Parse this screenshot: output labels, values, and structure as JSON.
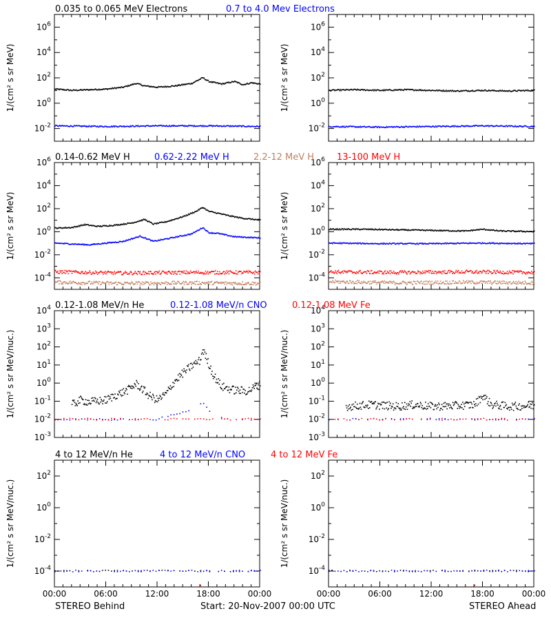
{
  "chart_data": {
    "type": "scatter",
    "x_tick_labels": [
      "00:00",
      "06:00",
      "12:00",
      "18:00",
      "00:00"
    ],
    "x_range_hours": [
      0,
      24
    ],
    "footer": {
      "left": "STEREO Behind",
      "center": "Start: 20-Nov-2007 00:00 UTC",
      "right": "STEREO Ahead"
    },
    "columns": [
      "STEREO Behind",
      "STEREO Ahead"
    ],
    "rows": [
      {
        "ylabel": "1/(cm² s sr MeV)",
        "ylim_log10": [
          -3,
          7
        ],
        "y_ticks": [
          -2,
          0,
          2,
          4,
          6
        ],
        "series": [
          {
            "name": "0.035 to 0.065 MeV Electrons",
            "color": "#000000",
            "behind": [
              [
                0,
                1.1
              ],
              [
                2,
                1.0
              ],
              [
                4,
                1.05
              ],
              [
                6,
                1.1
              ],
              [
                8,
                1.25
              ],
              [
                9.5,
                1.55
              ],
              [
                10.5,
                1.35
              ],
              [
                12,
                1.25
              ],
              [
                14,
                1.35
              ],
              [
                16,
                1.55
              ],
              [
                17.3,
                2.0
              ],
              [
                18,
                1.7
              ],
              [
                19.5,
                1.5
              ],
              [
                21,
                1.7
              ],
              [
                22,
                1.45
              ],
              [
                23,
                1.6
              ],
              [
                24,
                1.5
              ]
            ],
            "ahead": [
              [
                0,
                1.0
              ],
              [
                3,
                1.05
              ],
              [
                6,
                1.0
              ],
              [
                9,
                1.05
              ],
              [
                12,
                1.0
              ],
              [
                15,
                0.95
              ],
              [
                18,
                1.0
              ],
              [
                21,
                0.95
              ],
              [
                24,
                1.0
              ]
            ]
          },
          {
            "name": "0.7 to 4.0 Mev Electrons",
            "color": "#0000ff",
            "behind": [
              [
                0,
                -1.8
              ],
              [
                6,
                -1.85
              ],
              [
                12,
                -1.8
              ],
              [
                18,
                -1.8
              ],
              [
                24,
                -1.85
              ]
            ],
            "ahead": [
              [
                0,
                -1.85
              ],
              [
                6,
                -1.9
              ],
              [
                12,
                -1.85
              ],
              [
                18,
                -1.8
              ],
              [
                24,
                -1.85
              ]
            ]
          }
        ]
      },
      {
        "ylabel": "1/(cm² s sr MeV)",
        "ylim_log10": [
          -5,
          6
        ],
        "y_ticks": [
          -4,
          -2,
          0,
          2,
          4,
          6
        ],
        "series": [
          {
            "name": "0.14-0.62 MeV H",
            "color": "#000000",
            "behind": [
              [
                0,
                0.3
              ],
              [
                2,
                0.35
              ],
              [
                3.5,
                0.6
              ],
              [
                5,
                0.45
              ],
              [
                7,
                0.55
              ],
              [
                9,
                0.75
              ],
              [
                10.5,
                1.05
              ],
              [
                11.5,
                0.65
              ],
              [
                13,
                0.85
              ],
              [
                15,
                1.3
              ],
              [
                16.5,
                1.75
              ],
              [
                17.3,
                2.1
              ],
              [
                18,
                1.75
              ],
              [
                19,
                1.6
              ],
              [
                20.5,
                1.35
              ],
              [
                22,
                1.15
              ],
              [
                24,
                1.0
              ]
            ],
            "ahead": [
              [
                0,
                0.2
              ],
              [
                4,
                0.2
              ],
              [
                8,
                0.15
              ],
              [
                12,
                0.1
              ],
              [
                16,
                0.05
              ],
              [
                18,
                0.2
              ],
              [
                20,
                0.05
              ],
              [
                24,
                0.0
              ]
            ]
          },
          {
            "name": "0.62-2.22 MeV H",
            "color": "#0000ff",
            "behind": [
              [
                0,
                -1.0
              ],
              [
                4,
                -1.15
              ],
              [
                8,
                -0.85
              ],
              [
                10,
                -0.4
              ],
              [
                11.5,
                -0.85
              ],
              [
                14,
                -0.5
              ],
              [
                16,
                -0.2
              ],
              [
                17.3,
                0.35
              ],
              [
                18,
                -0.1
              ],
              [
                19,
                -0.15
              ],
              [
                21,
                -0.45
              ],
              [
                24,
                -0.55
              ]
            ],
            "ahead": [
              [
                0,
                -1.0
              ],
              [
                6,
                -1.05
              ],
              [
                12,
                -1.05
              ],
              [
                18,
                -1.0
              ],
              [
                24,
                -1.05
              ]
            ]
          },
          {
            "name": "2.2-12 MeV H",
            "color": "#c08060",
            "behind": [
              [
                0,
                -4.4
              ],
              [
                8,
                -4.5
              ],
              [
                16,
                -4.45
              ],
              [
                24,
                -4.5
              ]
            ],
            "ahead": [
              [
                0,
                -4.35
              ],
              [
                8,
                -4.45
              ],
              [
                16,
                -4.4
              ],
              [
                24,
                -4.45
              ]
            ]
          },
          {
            "name": "13-100 MeV H",
            "color": "#ff0000",
            "behind": [
              [
                0,
                -3.5
              ],
              [
                8,
                -3.6
              ],
              [
                16,
                -3.55
              ],
              [
                24,
                -3.55
              ]
            ],
            "ahead": [
              [
                0,
                -3.5
              ],
              [
                8,
                -3.55
              ],
              [
                16,
                -3.5
              ],
              [
                24,
                -3.55
              ]
            ]
          }
        ]
      },
      {
        "ylabel": "1/(cm² s sr MeV/nuc.)",
        "ylim_log10": [
          -3,
          4
        ],
        "y_ticks": [
          -3,
          -2,
          -1,
          0,
          1,
          2,
          3,
          4
        ],
        "series": [
          {
            "name": "0.12-1.08 MeV/n He",
            "color": "#000000",
            "behind": [
              [
                2,
                -1.2
              ],
              [
                3,
                -0.95
              ],
              [
                4,
                -1.05
              ],
              [
                6,
                -0.95
              ],
              [
                7,
                -0.7
              ],
              [
                8.5,
                -0.4
              ],
              [
                9.5,
                -0.05
              ],
              [
                10.5,
                -0.45
              ],
              [
                11,
                -0.7
              ],
              [
                12,
                -0.95
              ],
              [
                13,
                -0.6
              ],
              [
                14,
                0.1
              ],
              [
                15,
                0.55
              ],
              [
                16,
                0.95
              ],
              [
                17,
                1.25
              ],
              [
                17.3,
                1.85
              ],
              [
                18,
                1.05
              ],
              [
                18.5,
                0.45
              ],
              [
                19.5,
                -0.2
              ],
              [
                21,
                -0.4
              ],
              [
                22.5,
                -0.45
              ],
              [
                24,
                -0.1
              ]
            ],
            "ahead": [
              [
                2,
                -1.3
              ],
              [
                5,
                -1.2
              ],
              [
                8,
                -1.3
              ],
              [
                10,
                -1.2
              ],
              [
                12,
                -1.3
              ],
              [
                15,
                -1.25
              ],
              [
                17,
                -1.2
              ],
              [
                18,
                -0.7
              ],
              [
                19,
                -1.2
              ],
              [
                21,
                -1.3
              ],
              [
                24,
                -1.25
              ]
            ]
          },
          {
            "name": "0.12-1.08 MeV/n CNO",
            "color": "#0000ff",
            "behind": [
              [
                0,
                -2.0
              ],
              [
                6,
                -2.0
              ],
              [
                12,
                -2.0
              ],
              [
                14,
                -1.7
              ],
              [
                16,
                -1.55
              ],
              [
                17.3,
                -1.1
              ],
              [
                18,
                -1.5
              ],
              [
                20,
                -2.0
              ],
              [
                24,
                -2.0
              ]
            ],
            "ahead": [
              [
                0,
                -2.0
              ],
              [
                8,
                -2.0
              ],
              [
                16,
                -2.0
              ],
              [
                24,
                -2.0
              ]
            ]
          },
          {
            "name": "0.12-1.08 MeV Fe",
            "color": "#ff0000",
            "behind": [
              [
                0,
                -2.0
              ],
              [
                24,
                -2.0
              ]
            ],
            "ahead": [
              [
                0,
                -2.0
              ],
              [
                24,
                -2.0
              ]
            ]
          }
        ]
      },
      {
        "ylabel": "1/(cm² s sr MeV/nuc.)",
        "ylim_log10": [
          -5,
          3
        ],
        "y_ticks": [
          -4,
          -2,
          0,
          2
        ],
        "series": [
          {
            "name": "4 to 12 MeV/n He",
            "color": "#000000",
            "behind": [
              [
                0,
                -4.0
              ],
              [
                24,
                -4.0
              ]
            ],
            "ahead": [
              [
                0,
                -4.0
              ],
              [
                24,
                -4.0
              ]
            ]
          },
          {
            "name": "4 to 12 MeV/n CNO",
            "color": "#0000ff",
            "behind": [
              [
                0,
                -4.0
              ],
              [
                24,
                -4.0
              ]
            ],
            "ahead": [
              [
                0,
                -4.0
              ],
              [
                24,
                -4.0
              ]
            ]
          },
          {
            "name": "4 to 12 MeV Fe",
            "color": "#ff0000",
            "behind": [
              [
                17,
                -4.9
              ]
            ],
            "ahead": [
              [
                17,
                -4.9
              ]
            ]
          }
        ]
      }
    ]
  }
}
